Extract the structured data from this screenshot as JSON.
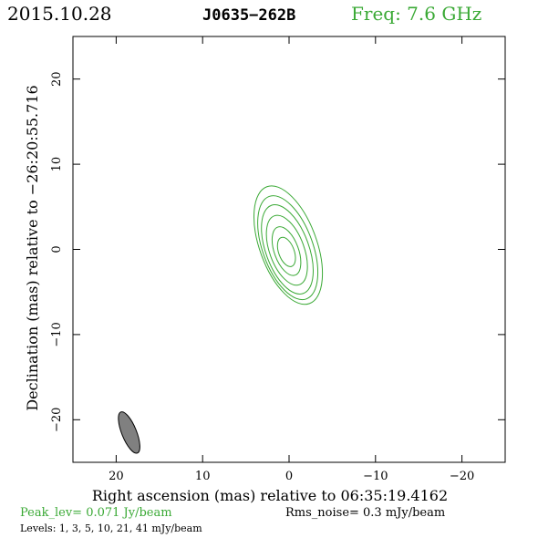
{
  "colors": {
    "accent": "#3aa935",
    "frame": "#000000",
    "beam_fill": "#808080"
  },
  "header": {
    "date": "2015.10.28",
    "source": "J0635−262B",
    "freq": "Freq: 7.6 GHz"
  },
  "footer": {
    "peak": "Peak_lev=  0.071 Jy/beam",
    "rms": "Rms_noise=   0.3 mJy/beam",
    "levels": "Levels:   1,   3,   5,  10,  21,  41 mJy/beam"
  },
  "chart_data": {
    "type": "contour",
    "xlabel": "Right ascension (mas) relative to 06:35:19.4162",
    "ylabel": "Declination (mas) relative to −26:20:55.716",
    "xlim": [
      25,
      -25
    ],
    "ylim": [
      -25,
      25
    ],
    "xticks": [
      20,
      10,
      0,
      -10,
      -20
    ],
    "xtick_labels": [
      "20",
      "10",
      "0",
      "−10",
      "−20"
    ],
    "yticks": [
      20,
      10,
      0,
      -10,
      -20
    ],
    "ytick_labels": [
      "20",
      "10",
      "0",
      "−10",
      "−20"
    ],
    "levels_mJy": [
      1,
      3,
      5,
      10,
      21,
      41
    ],
    "contours": [
      {
        "level": 1,
        "center": [
          0.1,
          0.5
        ],
        "semi_major": 7.3,
        "semi_minor": 3.3,
        "pa_deg": 20
      },
      {
        "level": 3,
        "center": [
          0.15,
          0.2
        ],
        "semi_major": 6.4,
        "semi_minor": 2.9,
        "pa_deg": 20
      },
      {
        "level": 5,
        "center": [
          0.2,
          0.0
        ],
        "semi_major": 5.5,
        "semi_minor": 2.5,
        "pa_deg": 20
      },
      {
        "level": 10,
        "center": [
          0.25,
          -0.1
        ],
        "semi_major": 4.3,
        "semi_minor": 2.0,
        "pa_deg": 20
      },
      {
        "level": 21,
        "center": [
          0.3,
          -0.2
        ],
        "semi_major": 3.0,
        "semi_minor": 1.4,
        "pa_deg": 20
      },
      {
        "level": 41,
        "center": [
          0.3,
          -0.3
        ],
        "semi_major": 1.8,
        "semi_minor": 0.9,
        "pa_deg": 20
      }
    ],
    "beam": {
      "center": [
        18.5,
        -21.5
      ],
      "major": 5.2,
      "minor": 1.7,
      "pa_deg": 22
    }
  }
}
